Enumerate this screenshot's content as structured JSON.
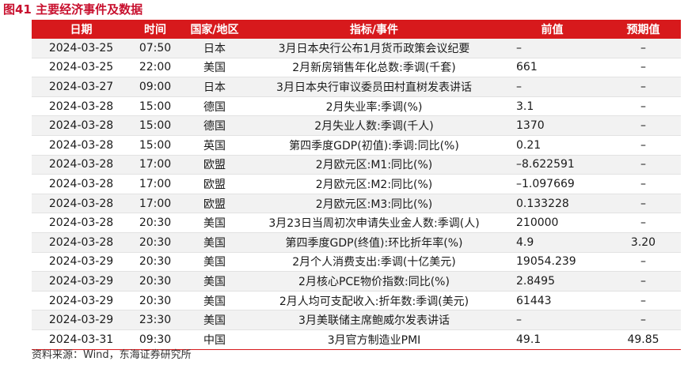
{
  "title": "图41  主要经济事件及数据",
  "headers": [
    "日期",
    "时间",
    "国家/地区",
    "指标/事件",
    "前值",
    "预期值"
  ],
  "rows": [
    [
      "2024-03-25",
      "07:50",
      "日本",
      "3月日本央行公布1月货币政策会议纪要",
      "–",
      "–"
    ],
    [
      "2024-03-25",
      "22:00",
      "美国",
      "2月新房销售年化总数:季调(千套)",
      "661",
      "–"
    ],
    [
      "2024-03-27",
      "09:00",
      "日本",
      "3月日本央行审议委员田村直树发表讲话",
      "–",
      "–"
    ],
    [
      "2024-03-28",
      "15:00",
      "德国",
      "2月失业率:季调(%)",
      "3.1",
      "–"
    ],
    [
      "2024-03-28",
      "15:00",
      "德国",
      "2月失业人数:季调(千人)",
      "1370",
      "–"
    ],
    [
      "2024-03-28",
      "15:00",
      "英国",
      "第四季度GDP(初值):季调:同比(%)",
      "0.21",
      "–"
    ],
    [
      "2024-03-28",
      "17:00",
      "欧盟",
      "2月欧元区:M1:同比(%)",
      "–8.622591",
      "–"
    ],
    [
      "2024-03-28",
      "17:00",
      "欧盟",
      "2月欧元区:M2:同比(%)",
      "–1.097669",
      "–"
    ],
    [
      "2024-03-28",
      "17:00",
      "欧盟",
      "2月欧元区:M3:同比(%)",
      "0.133228",
      "–"
    ],
    [
      "2024-03-28",
      "20:30",
      "美国",
      "3月23日当周初次申请失业金人数:季调(人)",
      "210000",
      "–"
    ],
    [
      "2024-03-28",
      "20:30",
      "美国",
      "第四季度GDP(终值):环比折年率(%)",
      "4.9",
      "3.20"
    ],
    [
      "2024-03-29",
      "20:30",
      "美国",
      "2月个人消费支出:季调(十亿美元)",
      "19054.239",
      "–"
    ],
    [
      "2024-03-29",
      "20:30",
      "美国",
      "2月核心PCE物价指数:同比(%)",
      "2.8495",
      "–"
    ],
    [
      "2024-03-29",
      "20:30",
      "美国",
      "2月人均可支配收入:折年数:季调(美元)",
      "61443",
      "–"
    ],
    [
      "2024-03-29",
      "23:30",
      "美国",
      "3月美联储主席鲍威尔发表讲话",
      "–",
      "–"
    ],
    [
      "2024-03-31",
      "09:30",
      "中国",
      "3月官方制造业PMI",
      "49.1",
      "49.85"
    ]
  ],
  "source": "资料来源：Wind，东海证券研究所",
  "colors": {
    "accent": "#d7191c",
    "title": "#c8102e",
    "stripe": "#f2f2f2"
  }
}
